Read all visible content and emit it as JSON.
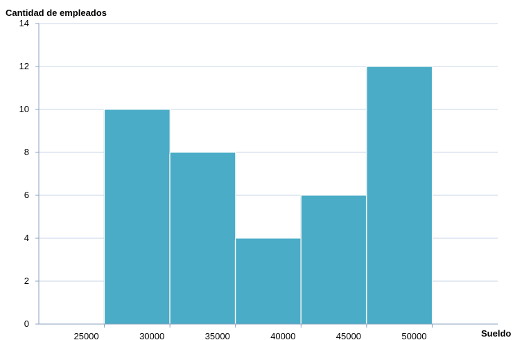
{
  "chart_data": {
    "type": "bar",
    "ylabel": "Cantidad de empleados",
    "xlabel": "Sueldo",
    "bins": [
      {
        "x0": 25000,
        "x1": 30000,
        "value": 10
      },
      {
        "x0": 30000,
        "x1": 35000,
        "value": 8
      },
      {
        "x0": 35000,
        "x1": 40000,
        "value": 4
      },
      {
        "x0": 40000,
        "x1": 45000,
        "value": 6
      },
      {
        "x0": 45000,
        "x1": 50000,
        "value": 12
      }
    ],
    "xlim": [
      20000,
      55000
    ],
    "ylim": [
      0,
      14
    ],
    "xticks": [
      "25000",
      "30000",
      "35000",
      "40000",
      "45000",
      "50000"
    ],
    "yticks": [
      "0",
      "2",
      "4",
      "6",
      "8",
      "10",
      "12",
      "14"
    ],
    "grid": true,
    "colors": {
      "bar": "#4aacc6",
      "bar_edge": "#ffffff",
      "grid": "#c8d6e8",
      "axis": "#8aa0bf"
    }
  }
}
